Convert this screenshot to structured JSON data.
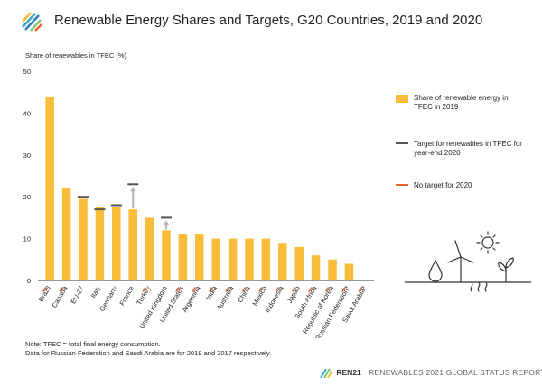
{
  "title": "Renewable Energy Shares and Targets, G20 Countries, 2019 and 2020",
  "chart_data": {
    "type": "bar",
    "ylabel": "Share of renewables in TFEC (%)",
    "ylim": [
      0,
      50
    ],
    "yticks": [
      0,
      10,
      20,
      30,
      40,
      50
    ],
    "grid": false,
    "legend_position": "right",
    "categories": [
      "Brazil",
      "Canada",
      "EU-27",
      "Italy",
      "Germany",
      "France",
      "Turkey",
      "United Kingdom",
      "United States",
      "Argentina",
      "India",
      "Australia",
      "China",
      "Mexico",
      "Indonesia",
      "Japan",
      "South Africa",
      "Republic of Korea",
      "Russian Federation*",
      "Saudi Arabia*"
    ],
    "series": [
      {
        "name": "Share of renewable energy in TFEC in 2019",
        "values": [
          44,
          22,
          19.5,
          17.5,
          17.5,
          17,
          15,
          12,
          11,
          11,
          10,
          10,
          10,
          10,
          9,
          8,
          6,
          5,
          4,
          0
        ],
        "color": "#f9bd3b"
      },
      {
        "name": "Target for renewables in TFEC for year-end 2020",
        "values": [
          null,
          null,
          20,
          17,
          18,
          23,
          null,
          15,
          null,
          null,
          null,
          null,
          null,
          null,
          null,
          null,
          null,
          null,
          null,
          null
        ],
        "color": "#555555"
      }
    ],
    "no_target": {
      "name": "No target for 2020",
      "color": "#e8622c",
      "categories": [
        "Brazil",
        "Canada",
        "Turkey",
        "United States",
        "Argentina",
        "India",
        "Australia",
        "China",
        "Mexico",
        "Indonesia",
        "Japan",
        "South Africa",
        "Republic of Korea",
        "Russian Federation*",
        "Saudi Arabia*"
      ]
    }
  },
  "legend": {
    "bar": "Share of renewable energy in TFEC in 2019",
    "target": "Target for renewables in TFEC for year-end 2020",
    "no_target": "No target for 2020"
  },
  "note": {
    "line1": "Note: TFEC = total final energy consumption.",
    "line2": "Data for Russian Federation and Saudi Arabia are for 2018 and 2017 respectively."
  },
  "footer": {
    "brand": "REN21",
    "report": "RENEWABLES 2021 GLOBAL STATUS REPORT"
  },
  "colors": {
    "bar": "#f9bd3b",
    "target": "#555555",
    "no_target": "#e8622c",
    "arrow": "#b8b8b8"
  }
}
